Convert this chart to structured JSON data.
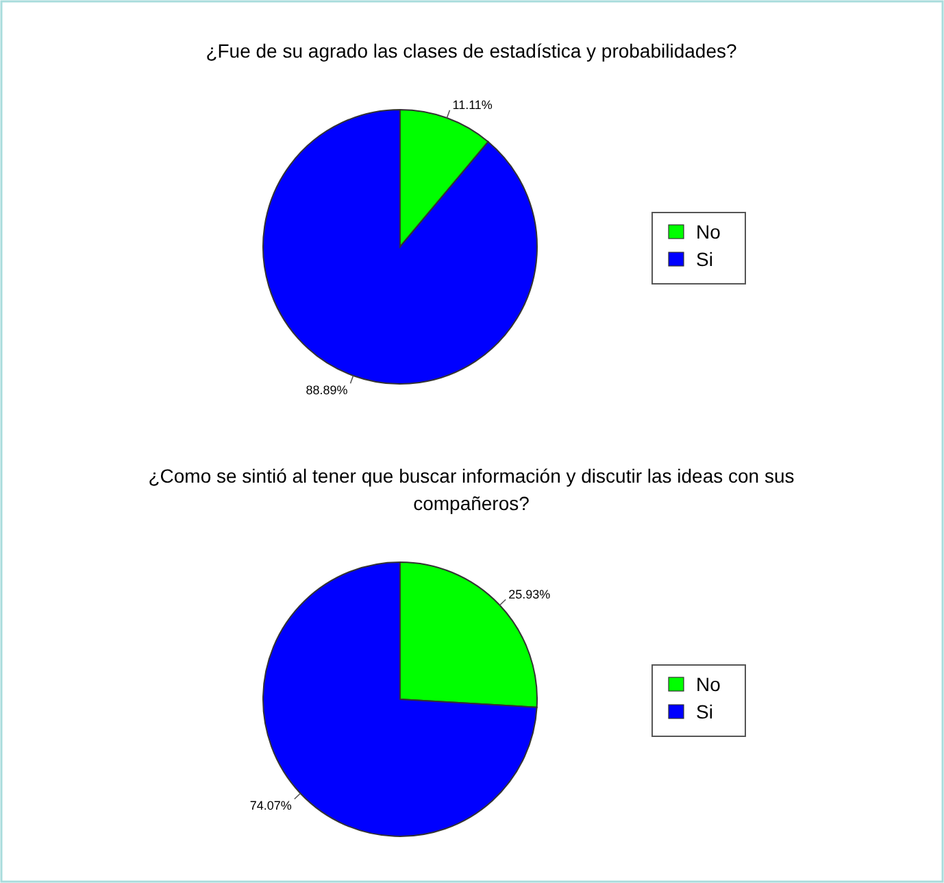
{
  "chart_data": [
    {
      "type": "pie",
      "title": "¿Fue de su agrado las clases de estadística y probabilidades?",
      "categories": [
        "No",
        "Si"
      ],
      "values": [
        11.11,
        88.89
      ],
      "colors": [
        "#00ff00",
        "#0000ff"
      ],
      "value_labels": [
        "11.11%",
        "88.89%"
      ],
      "legend": "right"
    },
    {
      "type": "pie",
      "title": "¿Como se sintió al tener que buscar información y discutir las ideas con sus compañeros?",
      "categories": [
        "No",
        "Si"
      ],
      "values": [
        25.93,
        74.07
      ],
      "colors": [
        "#00ff00",
        "#0000ff"
      ],
      "value_labels": [
        "25.93%",
        "74.07%"
      ],
      "legend": "right"
    }
  ]
}
